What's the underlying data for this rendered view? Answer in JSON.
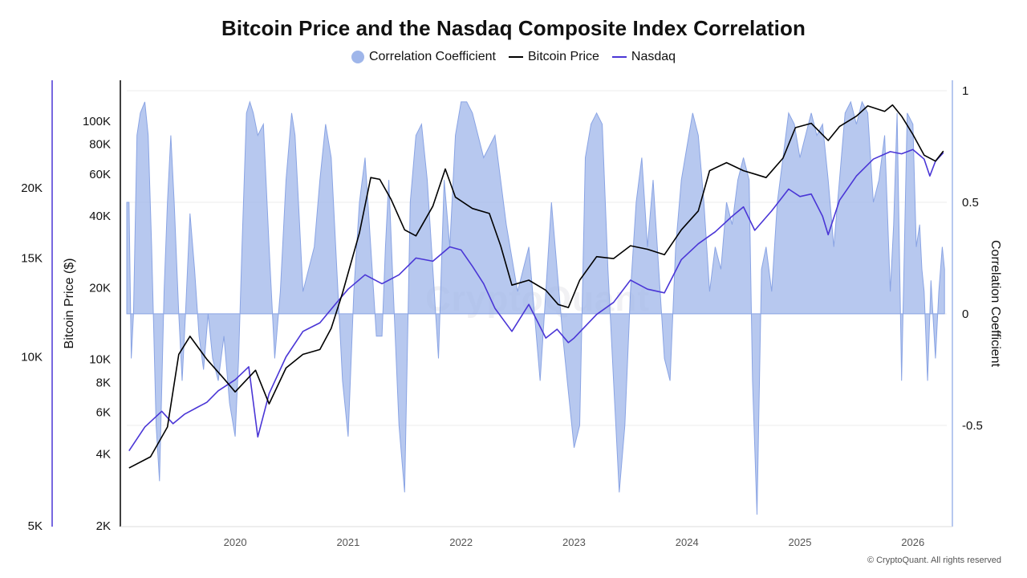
{
  "chart_data": {
    "type": "line",
    "title": "Bitcoin Price and the Nasdaq Composite Index Correlation",
    "legend": [
      {
        "name": "Correlation Coefficient",
        "color": "#9fb6ea",
        "kind": "area"
      },
      {
        "name": "Bitcoin Price",
        "color": "#000000",
        "kind": "line"
      },
      {
        "name": "Nasdaq",
        "color": "#4a36d6",
        "kind": "line"
      }
    ],
    "legend_position": "top-center",
    "x_ticks": [
      "2020",
      "2021",
      "2022",
      "2023",
      "2024",
      "2025",
      "2026"
    ],
    "x_range": [
      2019.04,
      2026.3
    ],
    "y_left_label": "Bitcoin Price ($)",
    "y_left_ticks": [
      "2K",
      "4K",
      "6K",
      "8K",
      "10K",
      "20K",
      "40K",
      "60K",
      "80K",
      "100K"
    ],
    "y_left_ticks_values": [
      2000,
      4000,
      6000,
      8000,
      10000,
      20000,
      40000,
      60000,
      80000,
      100000
    ],
    "y_left_scale": "log",
    "y_nasdaq_ticks": [
      "5K",
      "10K",
      "15K",
      "20K"
    ],
    "y_nasdaq_ticks_values": [
      5000,
      10000,
      15000,
      20000
    ],
    "y_right_label": "Correlation Coefficient",
    "y_right_ticks": [
      "1",
      "0.5",
      "0",
      "-0.5"
    ],
    "y_right_ticks_values": [
      1,
      0.5,
      0,
      -0.5
    ],
    "y_right_range": [
      -0.95,
      1.0
    ],
    "grid": "horizontal light",
    "series": [
      {
        "name": "Bitcoin Price",
        "x": [
          2019.06,
          2019.25,
          2019.4,
          2019.5,
          2019.6,
          2019.75,
          2019.9,
          2020.0,
          2020.18,
          2020.3,
          2020.45,
          2020.6,
          2020.75,
          2020.85,
          2020.95,
          2021.1,
          2021.2,
          2021.28,
          2021.38,
          2021.5,
          2021.6,
          2021.75,
          2021.86,
          2021.95,
          2022.1,
          2022.25,
          2022.35,
          2022.45,
          2022.6,
          2022.75,
          2022.86,
          2022.95,
          2023.05,
          2023.2,
          2023.35,
          2023.5,
          2023.65,
          2023.8,
          2023.95,
          2024.1,
          2024.2,
          2024.35,
          2024.5,
          2024.6,
          2024.7,
          2024.85,
          2024.96,
          2025.1,
          2025.25,
          2025.35,
          2025.5,
          2025.6,
          2025.75,
          2025.82,
          2025.9,
          2026.0,
          2026.1,
          2026.2,
          2026.27
        ],
        "values": [
          3500,
          3900,
          5200,
          10500,
          12500,
          10000,
          8300,
          7300,
          9000,
          6500,
          9200,
          10500,
          11000,
          13500,
          19000,
          34000,
          58000,
          57000,
          47000,
          35000,
          33000,
          44000,
          63000,
          48000,
          43000,
          41000,
          30000,
          20500,
          21500,
          19500,
          17000,
          16500,
          21500,
          27000,
          26500,
          30000,
          29000,
          27500,
          35000,
          42000,
          62000,
          67000,
          62000,
          60000,
          58000,
          70000,
          94000,
          98000,
          83000,
          95000,
          105000,
          116000,
          110000,
          117000,
          105000,
          88000,
          72000,
          68000,
          75000
        ]
      },
      {
        "name": "Nasdaq",
        "x": [
          2019.06,
          2019.2,
          2019.35,
          2019.45,
          2019.55,
          2019.65,
          2019.75,
          2019.85,
          2020.0,
          2020.12,
          2020.2,
          2020.3,
          2020.45,
          2020.6,
          2020.75,
          2020.9,
          2021.0,
          2021.15,
          2021.3,
          2021.45,
          2021.6,
          2021.75,
          2021.9,
          2022.0,
          2022.1,
          2022.2,
          2022.3,
          2022.45,
          2022.6,
          2022.75,
          2022.85,
          2022.95,
          2023.0,
          2023.2,
          2023.35,
          2023.5,
          2023.65,
          2023.8,
          2023.95,
          2024.1,
          2024.25,
          2024.4,
          2024.5,
          2024.6,
          2024.75,
          2024.9,
          2025.0,
          2025.1,
          2025.2,
          2025.25,
          2025.35,
          2025.5,
          2025.65,
          2025.8,
          2025.9,
          2026.0,
          2026.1,
          2026.15,
          2026.2,
          2026.27
        ],
        "values": [
          6800,
          7500,
          8000,
          7600,
          7900,
          8100,
          8300,
          8700,
          9100,
          9600,
          7200,
          8600,
          10000,
          11100,
          11500,
          12500,
          13200,
          14000,
          13500,
          14000,
          15000,
          14800,
          15700,
          15500,
          14500,
          13500,
          12200,
          11100,
          12400,
          10800,
          11200,
          10600,
          10800,
          11900,
          12500,
          13700,
          13200,
          13000,
          14900,
          15900,
          16700,
          17800,
          18500,
          16800,
          18200,
          19900,
          19300,
          19500,
          17800,
          16500,
          19000,
          21000,
          22500,
          23200,
          23000,
          23400,
          22500,
          21000,
          22300,
          23100
        ]
      }
    ],
    "correlation": {
      "name": "Correlation Coefficient",
      "x": [
        2019.04,
        2019.06,
        2019.08,
        2019.1,
        2019.13,
        2019.16,
        2019.2,
        2019.23,
        2019.26,
        2019.3,
        2019.33,
        2019.37,
        2019.4,
        2019.43,
        2019.46,
        2019.5,
        2019.53,
        2019.56,
        2019.6,
        2019.64,
        2019.68,
        2019.72,
        2019.76,
        2019.8,
        2019.85,
        2019.9,
        2019.95,
        2020.0,
        2020.03,
        2020.06,
        2020.1,
        2020.13,
        2020.16,
        2020.2,
        2020.25,
        2020.3,
        2020.35,
        2020.4,
        2020.45,
        2020.5,
        2020.53,
        2020.56,
        2020.6,
        2020.65,
        2020.7,
        2020.75,
        2020.8,
        2020.85,
        2020.9,
        2020.95,
        2021.0,
        2021.05,
        2021.1,
        2021.15,
        2021.2,
        2021.25,
        2021.3,
        2021.33,
        2021.36,
        2021.4,
        2021.45,
        2021.5,
        2021.55,
        2021.6,
        2021.65,
        2021.7,
        2021.75,
        2021.8,
        2021.85,
        2021.9,
        2021.95,
        2022.0,
        2022.05,
        2022.1,
        2022.15,
        2022.2,
        2022.3,
        2022.4,
        2022.5,
        2022.6,
        2022.7,
        2022.75,
        2022.8,
        2022.85,
        2022.9,
        2022.95,
        2023.0,
        2023.05,
        2023.1,
        2023.15,
        2023.2,
        2023.25,
        2023.3,
        2023.35,
        2023.4,
        2023.45,
        2023.5,
        2023.55,
        2023.6,
        2023.65,
        2023.7,
        2023.75,
        2023.8,
        2023.85,
        2023.9,
        2023.95,
        2024.0,
        2024.05,
        2024.1,
        2024.15,
        2024.2,
        2024.25,
        2024.3,
        2024.35,
        2024.4,
        2024.45,
        2024.5,
        2024.55,
        2024.58,
        2024.62,
        2024.66,
        2024.7,
        2024.75,
        2024.8,
        2024.85,
        2024.9,
        2024.95,
        2025.0,
        2025.05,
        2025.1,
        2025.15,
        2025.2,
        2025.25,
        2025.3,
        2025.35,
        2025.4,
        2025.45,
        2025.5,
        2025.55,
        2025.6,
        2025.65,
        2025.7,
        2025.75,
        2025.8,
        2025.83,
        2025.86,
        2025.9,
        2025.95,
        2026.0,
        2026.03,
        2026.06,
        2026.08,
        2026.1,
        2026.13,
        2026.16,
        2026.2,
        2026.23,
        2026.26,
        2026.28
      ],
      "values": [
        0.5,
        0.5,
        -0.2,
        0.0,
        0.8,
        0.9,
        0.95,
        0.8,
        0.3,
        -0.5,
        -0.75,
        0.1,
        0.5,
        0.8,
        0.5,
        0.0,
        -0.3,
        0.0,
        0.45,
        0.2,
        -0.1,
        -0.25,
        0.0,
        -0.2,
        -0.3,
        -0.1,
        -0.4,
        -0.55,
        -0.2,
        0.3,
        0.9,
        0.95,
        0.9,
        0.8,
        0.85,
        0.3,
        -0.2,
        0.1,
        0.6,
        0.9,
        0.8,
        0.5,
        0.1,
        0.2,
        0.3,
        0.6,
        0.85,
        0.7,
        0.2,
        -0.3,
        -0.55,
        0.1,
        0.5,
        0.7,
        0.3,
        -0.1,
        -0.1,
        0.3,
        0.6,
        0.1,
        -0.5,
        -0.8,
        0.5,
        0.8,
        0.85,
        0.6,
        0.2,
        -0.2,
        0.6,
        0.3,
        0.8,
        0.95,
        0.95,
        0.9,
        0.8,
        0.7,
        0.8,
        0.4,
        0.1,
        0.3,
        -0.3,
        0.1,
        0.5,
        0.2,
        -0.1,
        -0.35,
        -0.6,
        -0.5,
        0.7,
        0.85,
        0.9,
        0.85,
        0.2,
        -0.3,
        -0.8,
        -0.5,
        0.1,
        0.5,
        0.7,
        0.3,
        0.6,
        0.2,
        -0.2,
        -0.3,
        0.3,
        0.6,
        0.75,
        0.9,
        0.8,
        0.5,
        0.1,
        0.3,
        0.2,
        0.5,
        0.4,
        0.6,
        0.7,
        0.6,
        -0.3,
        -0.9,
        0.2,
        0.3,
        0.1,
        0.5,
        0.7,
        0.9,
        0.85,
        0.7,
        0.8,
        0.9,
        0.8,
        0.85,
        0.6,
        0.3,
        0.6,
        0.9,
        0.95,
        0.85,
        0.95,
        0.9,
        0.5,
        0.6,
        0.8,
        0.1,
        0.4,
        0.9,
        -0.3,
        0.9,
        0.85,
        0.3,
        0.4,
        0.2,
        0.1,
        -0.3,
        0.15,
        -0.2,
        0.1,
        0.3,
        0.2
      ],
      "fill": "#9fb6ea"
    }
  },
  "watermark": "CryptoQuant",
  "copyright": "© CryptoQuant. All rights reserved"
}
